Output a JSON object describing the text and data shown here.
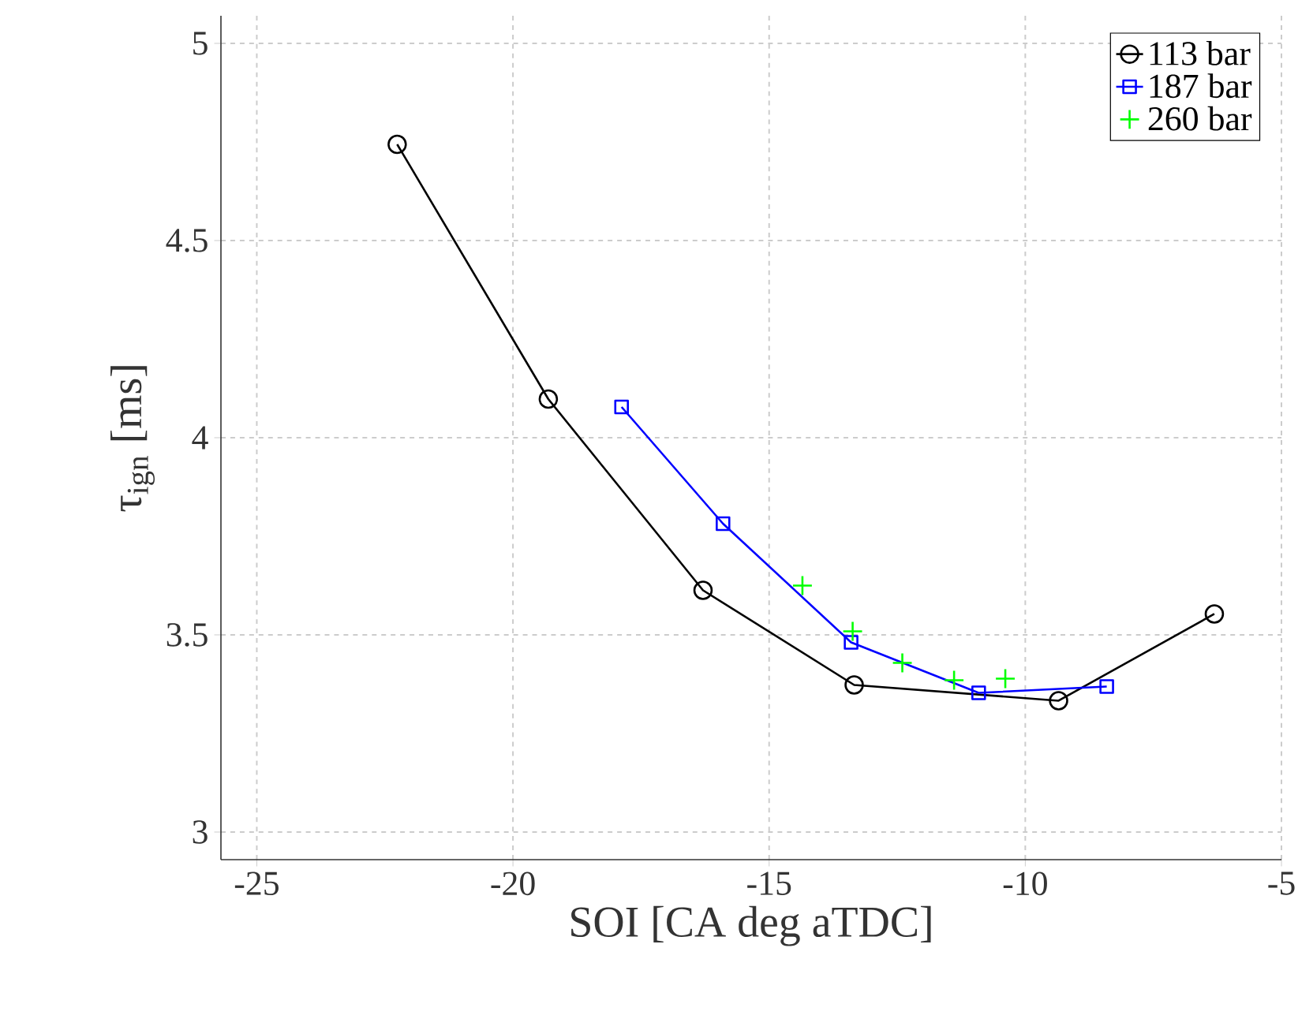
{
  "chart_data": {
    "type": "line",
    "xlabel": "SOI [CA deg aTDC]",
    "ylabel": "τ$_{ign}$ [ms]",
    "xlim": [
      -25.7,
      -5
    ],
    "ylim": [
      2.93,
      5.07
    ],
    "xticks": [
      -25,
      -20,
      -15,
      -10,
      -5
    ],
    "yticks": [
      3,
      3.5,
      4,
      4.5,
      5
    ],
    "grid": true,
    "legend": "top right",
    "series": [
      {
        "name": "113 bar",
        "color": "#000000",
        "marker": "circle",
        "x": [
          -22.26,
          -19.31,
          -16.29,
          -13.34,
          -9.35,
          -6.31
        ],
        "values": [
          4.744,
          4.098,
          3.613,
          3.373,
          3.333,
          3.553
        ]
      },
      {
        "name": "187 bar",
        "color": "#0000ff",
        "marker": "square",
        "x": [
          -17.88,
          -15.9,
          -13.4,
          -10.91,
          -8.41
        ],
        "values": [
          4.078,
          3.782,
          3.481,
          3.353,
          3.369
        ]
      },
      {
        "name": "260 bar",
        "color": "#00ff00",
        "type": "scatter",
        "marker": "cross",
        "x": [
          -14.35,
          -13.37,
          -12.4,
          -11.39,
          -10.39
        ],
        "values": [
          3.625,
          3.509,
          3.429,
          3.385,
          3.389
        ]
      }
    ]
  }
}
